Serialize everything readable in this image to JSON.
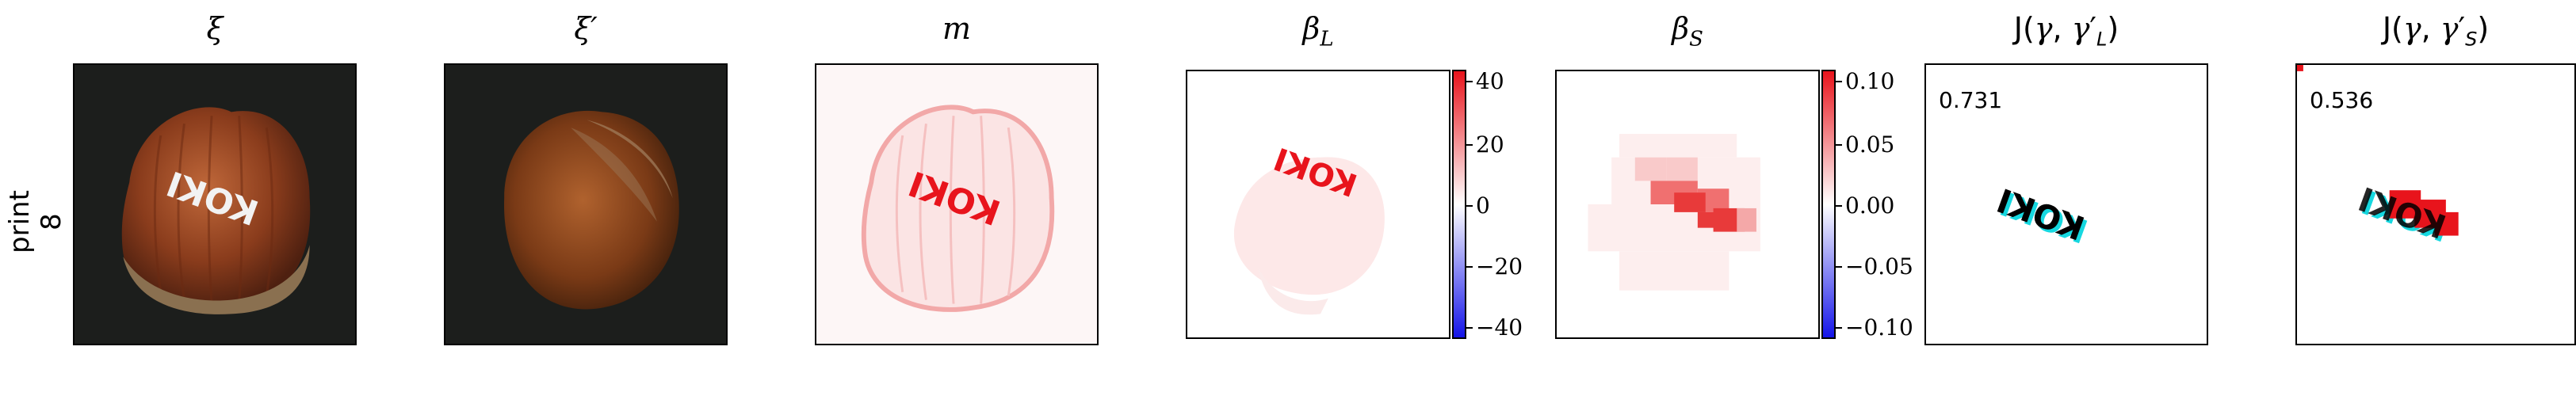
{
  "row": {
    "label_top": "print",
    "label_bottom": "8"
  },
  "panels": [
    {
      "title": "ξ"
    },
    {
      "title": "ξ′"
    },
    {
      "title": "m"
    },
    {
      "title": "β_L",
      "colorbar": {
        "ticks": [
          "40",
          "20",
          "0",
          "−20",
          "−40"
        ]
      }
    },
    {
      "title": "β_S",
      "colorbar": {
        "ticks": [
          "0.10",
          "0.05",
          "0.00",
          "−0.05",
          "−0.10"
        ]
      }
    },
    {
      "title": "J(γ, γ′_L)",
      "score": "0.731"
    },
    {
      "title": "J(γ, γ′_S)",
      "score": "0.536"
    }
  ],
  "image_text": "KOKI",
  "colors": {
    "positive": "#e8141c",
    "negative": "#1414e8",
    "overlay": "#16d8e0"
  }
}
